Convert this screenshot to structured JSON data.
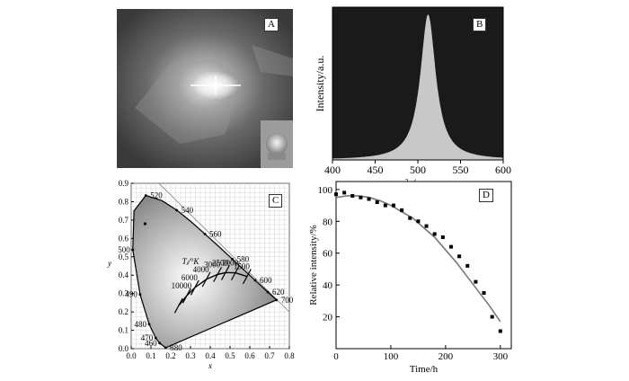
{
  "figure": {
    "panels": {
      "A": {
        "label": "A"
      },
      "B": {
        "label": "B"
      },
      "C": {
        "label": "C"
      },
      "D": {
        "label": "D"
      }
    }
  },
  "chart_data": [
    {
      "id": "B",
      "type": "area",
      "xlabel": "λ / nm",
      "ylabel": "Intensity/a.u.",
      "xlim": [
        400,
        600
      ],
      "xticks": [
        "400",
        "450",
        "500",
        "550",
        "600"
      ],
      "peak": 512,
      "fwhm": 22,
      "x": [
        400,
        440,
        470,
        480,
        490,
        495,
        500,
        505,
        510,
        512,
        515,
        520,
        525,
        530,
        540,
        550,
        570,
        600
      ],
      "y": [
        0,
        0.01,
        0.03,
        0.06,
        0.14,
        0.25,
        0.43,
        0.72,
        0.96,
        1.0,
        0.93,
        0.7,
        0.45,
        0.28,
        0.11,
        0.05,
        0.01,
        0
      ],
      "colors": {
        "background": "#1a1a1a",
        "fill": "#c8c8c8"
      }
    },
    {
      "id": "C",
      "type": "scatter",
      "xlabel": "x",
      "ylabel": "y",
      "xlim": [
        0.0,
        0.8
      ],
      "ylim": [
        0.0,
        0.9
      ],
      "xticks": [
        "0.0",
        "0.1",
        "0.2",
        "0.3",
        "0.4",
        "0.5",
        "0.6",
        "0.7",
        "0.8"
      ],
      "yticks": [
        "0.0",
        "0.1",
        "0.2",
        "0.3",
        "0.4",
        "0.5",
        "0.6",
        "0.7",
        "0.8",
        "0.9"
      ],
      "wavelength_labels": [
        {
          "text": "520",
          "x": 0.074,
          "y": 0.834
        },
        {
          "text": "540",
          "x": 0.23,
          "y": 0.754
        },
        {
          "text": "560",
          "x": 0.373,
          "y": 0.624
        },
        {
          "text": "580",
          "x": 0.512,
          "y": 0.487
        },
        {
          "text": "600",
          "x": 0.627,
          "y": 0.372
        },
        {
          "text": "620",
          "x": 0.691,
          "y": 0.308
        },
        {
          "text": "700",
          "x": 0.735,
          "y": 0.265
        },
        {
          "text": "500",
          "x": 0.008,
          "y": 0.538
        },
        {
          "text": "490",
          "x": 0.045,
          "y": 0.295
        },
        {
          "text": "480",
          "x": 0.091,
          "y": 0.133
        },
        {
          "text": "470",
          "x": 0.124,
          "y": 0.058
        },
        {
          "text": "460",
          "x": 0.144,
          "y": 0.03
        },
        {
          "text": "380",
          "x": 0.174,
          "y": 0.005
        }
      ],
      "temperature_title": "Tⱼ/°K",
      "temperature_labels": [
        {
          "text": "10000",
          "x": 0.281,
          "y": 0.288
        },
        {
          "text": "6000",
          "x": 0.322,
          "y": 0.332
        },
        {
          "text": "4000",
          "x": 0.38,
          "y": 0.377
        },
        {
          "text": "3000",
          "x": 0.437,
          "y": 0.404
        },
        {
          "text": "2500",
          "x": 0.477,
          "y": 0.414
        },
        {
          "text": "2000",
          "x": 0.527,
          "y": 0.413
        },
        {
          "text": "1500",
          "x": 0.586,
          "y": 0.393
        }
      ],
      "locus_x": [
        0.24,
        0.281,
        0.322,
        0.38,
        0.437,
        0.477,
        0.527,
        0.586
      ],
      "locus_y": [
        0.234,
        0.288,
        0.332,
        0.377,
        0.404,
        0.414,
        0.413,
        0.393
      ],
      "point": {
        "x": 0.07,
        "y": 0.68
      },
      "colors": {
        "gamut_center": "#ffffff",
        "gamut_edge": "#8a8a8a"
      }
    },
    {
      "id": "D",
      "type": "scatter",
      "xlabel": "Time/h",
      "ylabel": "Relative intensity/%",
      "xlim": [
        0,
        320
      ],
      "ylim": [
        0,
        105
      ],
      "xticks": [
        "0",
        "100",
        "200",
        "300"
      ],
      "yticks": [
        "20",
        "40",
        "60",
        "80",
        "100"
      ],
      "series": [
        {
          "x": [
            0,
            15,
            30,
            45,
            60,
            75,
            90,
            105,
            120,
            135,
            150,
            165,
            180,
            195,
            210,
            225,
            240,
            255,
            270,
            285,
            300
          ],
          "y": [
            97,
            98,
            96,
            95,
            94,
            92,
            90,
            90,
            87,
            82,
            80,
            77,
            72,
            70,
            64,
            58,
            52,
            42,
            35,
            20,
            11
          ]
        }
      ],
      "fit": {
        "x": [
          0,
          20,
          40,
          60,
          80,
          100,
          120,
          140,
          160,
          180,
          200,
          220,
          240,
          260,
          280,
          300
        ],
        "y": [
          95,
          96,
          96,
          95,
          93,
          90,
          86,
          82,
          76,
          70,
          62,
          54,
          45,
          36,
          27,
          17
        ]
      },
      "colors": {
        "points": "#000000",
        "fit": "#777777"
      }
    }
  ]
}
